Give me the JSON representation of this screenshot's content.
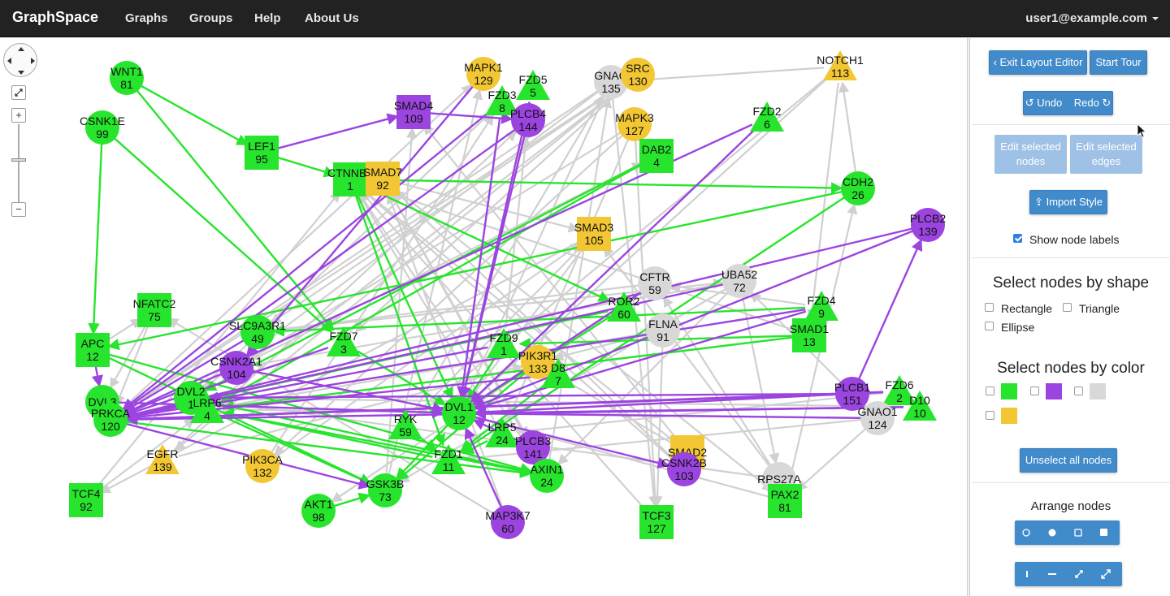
{
  "navbar": {
    "brand": "GraphSpace",
    "links": [
      "Graphs",
      "Groups",
      "Help",
      "About Us"
    ],
    "user": "user1@example.com"
  },
  "panel": {
    "exit_layout_editor": "Exit Layout Editor",
    "start_tour": "Start Tour",
    "undo": "Undo",
    "redo": "Redo",
    "edit_selected_nodes": "Edit selected nodes",
    "edit_selected_edges": "Edit selected edges",
    "import_style": "Import Style",
    "show_node_labels": "Show node labels",
    "show_node_labels_checked": true,
    "select_by_shape_title": "Select nodes by shape",
    "shapes": [
      "Rectangle",
      "Triangle",
      "Ellipse"
    ],
    "select_by_color_title": "Select nodes by color",
    "colors": [
      "#27e52c",
      "#9b44e0",
      "#d8d8d8",
      "#f2c733"
    ],
    "unselect_all": "Unselect all nodes",
    "arrange_title": "Arrange nodes",
    "arrange_buttons_row1": [
      "circle-outline-icon",
      "circle-filled-icon",
      "square-outline-icon",
      "square-filled-icon"
    ],
    "arrange_buttons_row2": [
      "vertical-line-icon",
      "horizontal-line-icon",
      "compress-icon",
      "expand-icon"
    ]
  },
  "graph": {
    "colors": {
      "green": "#27e52c",
      "purple": "#9b44e0",
      "gray": "#d8d8d8",
      "yellow": "#f2c733",
      "edge_gray": "#d0d0d0"
    },
    "nodes": [
      {
        "id": "WNT1",
        "label": "WNT1\n81",
        "shape": "ellipse",
        "color": "green"
      },
      {
        "id": "CSNK1E",
        "label": "CSNK1E\n99",
        "shape": "ellipse",
        "color": "green"
      },
      {
        "id": "LEF1",
        "label": "LEF1\n95",
        "shape": "rect",
        "color": "green"
      },
      {
        "id": "SMAD4",
        "label": "SMAD4\n109",
        "shape": "rect",
        "color": "purple"
      },
      {
        "id": "MAPK1",
        "label": "MAPK1\n129",
        "shape": "ellipse",
        "color": "yellow"
      },
      {
        "id": "FZD5",
        "label": "FZD5\n5",
        "shape": "triangle",
        "color": "green"
      },
      {
        "id": "FZD3",
        "label": "FZD3\n8",
        "shape": "triangle",
        "color": "green"
      },
      {
        "id": "PLCB4",
        "label": "PLCB4\n144",
        "shape": "ellipse",
        "color": "purple"
      },
      {
        "id": "GNAQ",
        "label": "GNAQ\n135",
        "shape": "ellipse",
        "color": "gray"
      },
      {
        "id": "SRC",
        "label": "SRC\n130",
        "shape": "ellipse",
        "color": "yellow"
      },
      {
        "id": "NOTCH1",
        "label": "NOTCH1\n113",
        "shape": "triangle",
        "color": "yellow"
      },
      {
        "id": "MAPK3",
        "label": "MAPK3\n127",
        "shape": "ellipse",
        "color": "yellow"
      },
      {
        "id": "FZD2",
        "label": "FZD2\n6",
        "shape": "triangle",
        "color": "green"
      },
      {
        "id": "DAB2",
        "label": "DAB2\n4",
        "shape": "rect",
        "color": "green"
      },
      {
        "id": "CTNNB1",
        "label": "CTNNB1\n1",
        "shape": "rect",
        "color": "green"
      },
      {
        "id": "SMAD7",
        "label": "SMAD7\n92",
        "shape": "rect",
        "color": "yellow"
      },
      {
        "id": "CDH2",
        "label": "CDH2\n26",
        "shape": "ellipse",
        "color": "green"
      },
      {
        "id": "PLCB2",
        "label": "PLCB2\n139",
        "shape": "ellipse",
        "color": "purple"
      },
      {
        "id": "SMAD3",
        "label": "SMAD3\n105",
        "shape": "rect",
        "color": "yellow"
      },
      {
        "id": "CFTR",
        "label": "CFTR\n59",
        "shape": "ellipse",
        "color": "gray"
      },
      {
        "id": "UBA52",
        "label": "UBA52\n72",
        "shape": "ellipse",
        "color": "gray"
      },
      {
        "id": "NFATC2",
        "label": "NFATC2\n75",
        "shape": "rect",
        "color": "green"
      },
      {
        "id": "ROR2",
        "label": "ROR2\n60",
        "shape": "triangle",
        "color": "green"
      },
      {
        "id": "FLNA",
        "label": "FLNA\n91",
        "shape": "ellipse",
        "color": "gray"
      },
      {
        "id": "FZD4",
        "label": "FZD4\n9",
        "shape": "triangle",
        "color": "green"
      },
      {
        "id": "SLC9A3R1",
        "label": "SLC9A3R1\n49",
        "shape": "ellipse",
        "color": "green"
      },
      {
        "id": "SMAD1",
        "label": "SMAD1\n13",
        "shape": "rect",
        "color": "green"
      },
      {
        "id": "APC",
        "label": "APC\n12",
        "shape": "rect",
        "color": "green"
      },
      {
        "id": "FZD7",
        "label": "FZD7\n3",
        "shape": "triangle",
        "color": "green"
      },
      {
        "id": "FZD9",
        "label": "FZD9\n1",
        "shape": "triangle",
        "color": "green"
      },
      {
        "id": "CSNK2A1",
        "label": "CSNK2A1\n104",
        "shape": "ellipse",
        "color": "purple"
      },
      {
        "id": "PIK3R1",
        "label": "PIK3R1\n133",
        "shape": "ellipse",
        "color": "yellow"
      },
      {
        "id": "FZD8",
        "label": "D8\n7",
        "shape": "triangle",
        "color": "green"
      },
      {
        "id": "PLCB1",
        "label": "PLCB1\n151",
        "shape": "ellipse",
        "color": "purple"
      },
      {
        "id": "FZD6",
        "label": "FZD6\n2",
        "shape": "triangle",
        "color": "green"
      },
      {
        "id": "FZD10",
        "label": "D10\n10",
        "shape": "triangle",
        "color": "green"
      },
      {
        "id": "GNAO1",
        "label": "GNAO1\n124",
        "shape": "ellipse",
        "color": "gray"
      },
      {
        "id": "DVL3",
        "label": "DVL3",
        "shape": "ellipse",
        "color": "green"
      },
      {
        "id": "PRKCA",
        "label": "PRKCA\n120",
        "shape": "ellipse",
        "color": "green"
      },
      {
        "id": "DVL2",
        "label": "DVL2\n1",
        "shape": "ellipse",
        "color": "green"
      },
      {
        "id": "LRP6",
        "label": "LRP6\n4",
        "shape": "triangle",
        "color": "green"
      },
      {
        "id": "DVL1",
        "label": "DVL1\n12",
        "shape": "ellipse",
        "color": "green"
      },
      {
        "id": "RYK",
        "label": "RYK\n59",
        "shape": "triangle",
        "color": "green"
      },
      {
        "id": "LRP5",
        "label": "LRP5\n24",
        "shape": "triangle",
        "color": "green"
      },
      {
        "id": "PLCB3",
        "label": "PLCB3\n141",
        "shape": "ellipse",
        "color": "purple"
      },
      {
        "id": "SMAD2",
        "label": "SMAD2",
        "shape": "rect",
        "color": "yellow"
      },
      {
        "id": "CSNK2B",
        "label": "CSNK2B\n103",
        "shape": "ellipse",
        "color": "purple"
      },
      {
        "id": "EGFR",
        "label": "EGFR\n139",
        "shape": "triangle",
        "color": "yellow"
      },
      {
        "id": "PIK3CA",
        "label": "PIK3CA\n132",
        "shape": "ellipse",
        "color": "yellow"
      },
      {
        "id": "FZD1",
        "label": "FZD1\n11",
        "shape": "triangle",
        "color": "green"
      },
      {
        "id": "AXIN1",
        "label": "AXIN1\n24",
        "shape": "ellipse",
        "color": "green"
      },
      {
        "id": "RPS27A",
        "label": "RPS27A",
        "shape": "ellipse",
        "color": "gray"
      },
      {
        "id": "PAX2",
        "label": "PAX2\n81",
        "shape": "rect",
        "color": "green"
      },
      {
        "id": "TCF4",
        "label": "TCF4\n92",
        "shape": "rect",
        "color": "green"
      },
      {
        "id": "GSK3B",
        "label": "GSK3B\n73",
        "shape": "ellipse",
        "color": "green"
      },
      {
        "id": "AKT1",
        "label": "AKT1\n98",
        "shape": "ellipse",
        "color": "green"
      },
      {
        "id": "MAP3K7",
        "label": "MAP3K7\n60",
        "shape": "ellipse",
        "color": "purple"
      },
      {
        "id": "TCF3",
        "label": "TCF3\n127",
        "shape": "rect",
        "color": "green"
      }
    ],
    "edges": [
      [
        "WNT1",
        "LEF1",
        "green"
      ],
      [
        "WNT1",
        "FZD7",
        "green"
      ],
      [
        "CSNK1E",
        "APC",
        "green"
      ],
      [
        "CSNK1E",
        "FZD7",
        "green"
      ],
      [
        "LEF1",
        "SMAD4",
        "purple"
      ],
      [
        "LEF1",
        "CTNNB1",
        "green"
      ],
      [
        "CTNNB1",
        "CDH2",
        "green"
      ],
      [
        "CTNNB1",
        "FZD1",
        "green"
      ],
      [
        "CTNNB1",
        "DVL1",
        "green"
      ],
      [
        "CTNNB1",
        "ROR2",
        "green"
      ],
      [
        "SMAD4",
        "PLCB4",
        "purple"
      ],
      [
        "FZD3",
        "PRKCA",
        "purple"
      ],
      [
        "FZD3",
        "DVL1",
        "purple"
      ],
      [
        "PLCB4",
        "DVL1",
        "purple"
      ],
      [
        "PLCB4",
        "PRKCA",
        "purple"
      ],
      [
        "MAPK1",
        "CSNK2A1",
        "purple"
      ],
      [
        "FZD2",
        "PRKCA",
        "purple"
      ],
      [
        "FZD2",
        "DVL1",
        "purple"
      ],
      [
        "DAB2",
        "DVL2",
        "green"
      ],
      [
        "DAB2",
        "LRP6",
        "green"
      ],
      [
        "CDH2",
        "APC",
        "green"
      ],
      [
        "CDH2",
        "FZD1",
        "green"
      ],
      [
        "PLCB2",
        "PRKCA",
        "purple"
      ],
      [
        "PLCB2",
        "DVL1",
        "purple"
      ],
      [
        "PLCB1",
        "PLCB2",
        "purple"
      ],
      [
        "UBA52",
        "PRKCA",
        "purple"
      ],
      [
        "CFTR",
        "DVL1",
        "purple"
      ],
      [
        "ROR2",
        "PRKCA",
        "green"
      ],
      [
        "ROR2",
        "DVL1",
        "green"
      ],
      [
        "FZD4",
        "PRKCA",
        "purple"
      ],
      [
        "FZD4",
        "DVL1",
        "purple"
      ],
      [
        "FZD4",
        "SLC9A3R1",
        "green"
      ],
      [
        "SMAD1",
        "LRP6",
        "green"
      ],
      [
        "SMAD1",
        "FZD9",
        "green"
      ],
      [
        "FZD6",
        "PRKCA",
        "purple"
      ],
      [
        "FZD6",
        "DVL1",
        "purple"
      ],
      [
        "FZD10",
        "PRKCA",
        "purple"
      ],
      [
        "FZD10",
        "DVL1",
        "purple"
      ],
      [
        "PLCB1",
        "PRKCA",
        "purple"
      ],
      [
        "PLCB1",
        "DVL2",
        "purple"
      ],
      [
        "GNAO1",
        "DVL1",
        "purple"
      ],
      [
        "APC",
        "AXIN1",
        "green"
      ],
      [
        "APC",
        "GSK3B",
        "green"
      ],
      [
        "APC",
        "DVL3",
        "purple"
      ],
      [
        "FZD7",
        "PRKCA",
        "purple"
      ],
      [
        "FZD7",
        "DVL1",
        "green"
      ],
      [
        "FZD9",
        "DVL1",
        "green"
      ],
      [
        "FZD9",
        "PRKCA",
        "purple"
      ],
      [
        "PIK3R1",
        "GSK3B",
        "green"
      ],
      [
        "FZD8",
        "FZD1",
        "green"
      ],
      [
        "FZD8",
        "PRKCA",
        "purple"
      ],
      [
        "LRP6",
        "AXIN1",
        "green"
      ],
      [
        "LRP6",
        "GSK3B",
        "green"
      ],
      [
        "DVL2",
        "AXIN1",
        "green"
      ],
      [
        "DVL1",
        "CSNK2B",
        "purple"
      ],
      [
        "DVL1",
        "GSK3B",
        "green"
      ],
      [
        "PRKCA",
        "GSK3B",
        "purple"
      ],
      [
        "PRKCA",
        "AXIN1",
        "green"
      ],
      [
        "CSNK2A1",
        "DVL1",
        "purple"
      ],
      [
        "LRP5",
        "AXIN1",
        "green"
      ],
      [
        "LRP5",
        "FZD1",
        "green"
      ],
      [
        "RYK",
        "FZD1",
        "green"
      ],
      [
        "AKT1",
        "GSK3B",
        "green"
      ],
      [
        "PLCB3",
        "DVL1",
        "purple"
      ],
      [
        "FZD5",
        "DVL1",
        "purple"
      ],
      [
        "SLC9A3R1",
        "PRKCA",
        "purple"
      ],
      [
        "CSNK2A1",
        "PRKCA",
        "purple"
      ],
      [
        "MAP3K7",
        "DVL1",
        "purple"
      ],
      [
        "DVL3",
        "DVL1",
        "purple"
      ],
      [
        "FZD1",
        "LRP6",
        "green"
      ],
      [
        "GNAQ",
        "PRKCA",
        "gray"
      ],
      [
        "GNAQ",
        "DVL1",
        "gray"
      ],
      [
        "GNAQ",
        "DVL2",
        "gray"
      ],
      [
        "GNAQ",
        "TCF3",
        "gray"
      ],
      [
        "SRC",
        "PRKCA",
        "gray"
      ],
      [
        "SRC",
        "SLC9A3R1",
        "gray"
      ],
      [
        "SRC",
        "FZD7",
        "gray"
      ],
      [
        "SRC",
        "EGFR",
        "gray"
      ],
      [
        "NOTCH1",
        "GNAQ",
        "gray"
      ],
      [
        "NOTCH1",
        "DVL1",
        "gray"
      ],
      [
        "NOTCH1",
        "SMAD1",
        "gray"
      ],
      [
        "NOTCH1",
        "RYK",
        "gray"
      ],
      [
        "MAPK3",
        "TCF3",
        "gray"
      ],
      [
        "MAPK3",
        "LRP5",
        "gray"
      ],
      [
        "MAPK3",
        "CSNK2A1",
        "gray"
      ],
      [
        "MAPK3",
        "PIK3CA",
        "gray"
      ],
      [
        "SMAD7",
        "SMAD3",
        "gray"
      ],
      [
        "SMAD7",
        "AXIN1",
        "gray"
      ],
      [
        "SMAD7",
        "PAX2",
        "gray"
      ],
      [
        "SMAD3",
        "RYK",
        "gray"
      ],
      [
        "SMAD3",
        "TCF4",
        "gray"
      ],
      [
        "SMAD3",
        "DVL1",
        "gray"
      ],
      [
        "CFTR",
        "SLC9A3R1",
        "gray"
      ],
      [
        "CFTR",
        "AKT1",
        "gray"
      ],
      [
        "UBA52",
        "AXIN1",
        "gray"
      ],
      [
        "UBA52",
        "CSNK2A1",
        "gray"
      ],
      [
        "UBA52",
        "GSK3B",
        "gray"
      ],
      [
        "UBA52",
        "RPS27A",
        "gray"
      ],
      [
        "FLNA",
        "LRP6",
        "gray"
      ],
      [
        "FLNA",
        "PIK3R1",
        "gray"
      ],
      [
        "FLNA",
        "TCF3",
        "gray"
      ],
      [
        "NFATC2",
        "DVL3",
        "gray"
      ],
      [
        "NFATC2",
        "PRKCA",
        "gray"
      ],
      [
        "GNAO1",
        "FZD1",
        "gray"
      ],
      [
        "GNAO1",
        "LRP6",
        "gray"
      ],
      [
        "GNAO1",
        "PAX2",
        "gray"
      ],
      [
        "RPS27A",
        "SMAD3",
        "gray"
      ],
      [
        "RPS27A",
        "CFTR",
        "gray"
      ],
      [
        "RPS27A",
        "DVL2",
        "gray"
      ],
      [
        "SMAD2",
        "FZD9",
        "gray"
      ],
      [
        "SMAD2",
        "CTNNB1",
        "gray"
      ],
      [
        "SMAD2",
        "SMAD4",
        "gray"
      ],
      [
        "CSNK2B",
        "CTNNB1",
        "gray"
      ],
      [
        "CSNK2B",
        "SMAD7",
        "gray"
      ],
      [
        "EGFR",
        "PLCB4",
        "gray"
      ],
      [
        "EGFR",
        "PIK3R1",
        "gray"
      ],
      [
        "PIK3CA",
        "FZD3",
        "gray"
      ],
      [
        "PIK3CA",
        "SMAD3",
        "gray"
      ],
      [
        "TCF4",
        "CTNNB1",
        "gray"
      ],
      [
        "TCF4",
        "LRP6",
        "gray"
      ],
      [
        "GSK3B",
        "SMAD4",
        "gray"
      ],
      [
        "GSK3B",
        "MAPK1",
        "gray"
      ],
      [
        "AXIN1",
        "GNAQ",
        "gray"
      ],
      [
        "AXIN1",
        "CTNNB1",
        "gray"
      ],
      [
        "MAP3K7",
        "SMAD7",
        "gray"
      ],
      [
        "MAP3K7",
        "NFATC2",
        "gray"
      ],
      [
        "TCF3",
        "CTNNB1",
        "gray"
      ],
      [
        "PAX2",
        "CDH2",
        "gray"
      ],
      [
        "DVL1",
        "FZD5",
        "gray"
      ],
      [
        "DVL2",
        "FZD3",
        "gray"
      ],
      [
        "PRKCA",
        "MAPK1",
        "gray"
      ],
      [
        "LRP6",
        "SRC",
        "gray"
      ],
      [
        "RYK",
        "GNAQ",
        "gray"
      ],
      [
        "FZD9",
        "PLCB4",
        "gray"
      ],
      [
        "PLCB3",
        "SMAD7",
        "gray"
      ],
      [
        "PLCB1",
        "UBA52",
        "gray"
      ],
      [
        "CDH2",
        "NOTCH1",
        "gray"
      ],
      [
        "APC",
        "NFATC2",
        "gray"
      ],
      [
        "CSNK2A1",
        "DAB2",
        "gray"
      ],
      [
        "SLC9A3R1",
        "UBA52",
        "gray"
      ],
      [
        "FZD4",
        "CFTR",
        "gray"
      ],
      [
        "SMAD1",
        "CTNNB1",
        "gray"
      ],
      [
        "PAX2",
        "DVL1",
        "gray"
      ],
      [
        "FZD6",
        "LRP5",
        "gray"
      ],
      [
        "FZD10",
        "DVL2",
        "gray"
      ],
      [
        "LRP5",
        "CTNNB1",
        "gray"
      ]
    ]
  }
}
